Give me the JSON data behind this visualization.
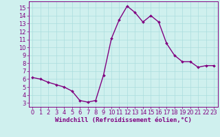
{
  "x": [
    0,
    1,
    2,
    3,
    4,
    5,
    6,
    7,
    8,
    9,
    10,
    11,
    12,
    13,
    14,
    15,
    16,
    17,
    18,
    19,
    20,
    21,
    22,
    23
  ],
  "y": [
    6.2,
    6.0,
    5.6,
    5.3,
    5.0,
    4.5,
    3.3,
    3.1,
    3.3,
    6.5,
    11.1,
    13.5,
    15.2,
    14.4,
    13.2,
    14.0,
    13.2,
    10.5,
    9.0,
    8.2,
    8.2,
    7.5,
    7.7,
    7.7
  ],
  "line_color": "#800080",
  "marker": "D",
  "marker_size": 2,
  "line_width": 1.0,
  "bg_color": "#cff0ee",
  "grid_color": "#aadddd",
  "xlabel": "Windchill (Refroidissement éolien,°C)",
  "xlabel_color": "#800080",
  "xlabel_fontsize": 6.5,
  "tick_color": "#800080",
  "tick_fontsize": 6.0,
  "ylim": [
    2.5,
    15.8
  ],
  "xlim": [
    -0.5,
    23.5
  ],
  "yticks": [
    3,
    4,
    5,
    6,
    7,
    8,
    9,
    10,
    11,
    12,
    13,
    14,
    15
  ],
  "xticks": [
    0,
    1,
    2,
    3,
    4,
    5,
    6,
    7,
    8,
    9,
    10,
    11,
    12,
    13,
    14,
    15,
    16,
    17,
    18,
    19,
    20,
    21,
    22,
    23
  ]
}
